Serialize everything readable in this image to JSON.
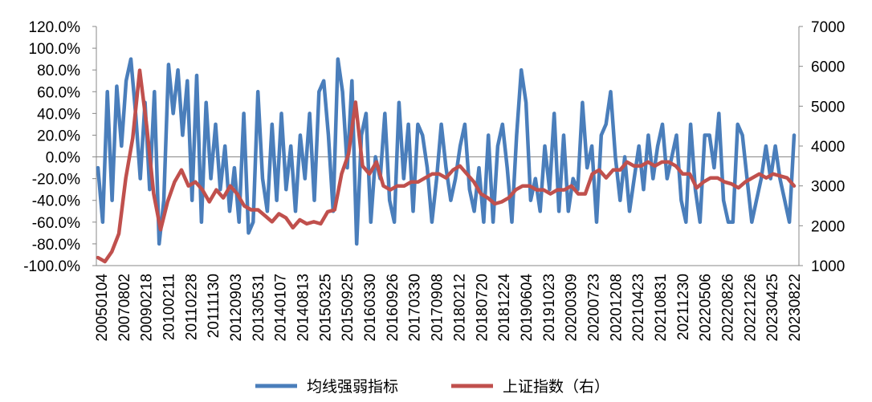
{
  "chart_data": {
    "type": "line",
    "grid": false,
    "legend_position": "bottom",
    "x_tick_labels": [
      "20050104",
      "20070802",
      "20090218",
      "20100211",
      "20110228",
      "20111130",
      "20120903",
      "20130531",
      "20140107",
      "20140813",
      "20150325",
      "20150925",
      "20160330",
      "20160926",
      "20170330",
      "20170908",
      "20180212",
      "20180720",
      "20181224",
      "20190604",
      "20191023",
      "20200309",
      "20200723",
      "20201208",
      "20210423",
      "20210831",
      "20211230",
      "20220506",
      "20220826",
      "20221226",
      "20230425",
      "20230822"
    ],
    "y_left": {
      "ticks": [
        "-100.0%",
        "-80.0%",
        "-60.0%",
        "-40.0%",
        "-20.0%",
        "0.0%",
        "20.0%",
        "40.0%",
        "60.0%",
        "80.0%",
        "100.0%",
        "120.0%"
      ],
      "range": [
        -100,
        120
      ],
      "unit": "%"
    },
    "y_right": {
      "ticks": [
        "1000",
        "2000",
        "3000",
        "4000",
        "5000",
        "6000",
        "7000"
      ],
      "range": [
        1000,
        7000
      ]
    },
    "series": [
      {
        "name": "均线强弱指标",
        "axis": "left",
        "color": "#4a7ebb",
        "values": [
          -10,
          -60,
          60,
          -40,
          65,
          10,
          70,
          90,
          40,
          -20,
          50,
          -30,
          60,
          -80,
          -40,
          85,
          40,
          80,
          20,
          70,
          -40,
          75,
          -60,
          50,
          -20,
          30,
          -30,
          10,
          -50,
          -10,
          -60,
          40,
          -70,
          -60,
          60,
          -20,
          -50,
          30,
          -40,
          40,
          -30,
          10,
          -50,
          20,
          -20,
          40,
          -40,
          60,
          70,
          20,
          -50,
          90,
          60,
          -10,
          70,
          -80,
          20,
          40,
          -60,
          0,
          -20,
          40,
          -40,
          -60,
          50,
          -20,
          30,
          -50,
          30,
          20,
          -10,
          -60,
          -20,
          30,
          -10,
          -40,
          -20,
          10,
          30,
          -30,
          -50,
          -10,
          -60,
          20,
          -60,
          10,
          30,
          -10,
          -60,
          20,
          80,
          50,
          -40,
          -20,
          -50,
          10,
          -30,
          40,
          -50,
          20,
          -50,
          -20,
          -30,
          50,
          -10,
          10,
          -60,
          20,
          30,
          60,
          0,
          -40,
          0,
          -50,
          -20,
          10,
          -30,
          20,
          -20,
          10,
          30,
          -20,
          0,
          20,
          -40,
          -60,
          30,
          -30,
          -60,
          20,
          20,
          -10,
          40,
          -40,
          -60,
          -60,
          30,
          20,
          -20,
          -60,
          -40,
          -20,
          10,
          -20,
          10,
          -20,
          -40,
          -60,
          20
        ]
      },
      {
        "name": "上证指数（右）",
        "axis": "right",
        "color": "#c0504d",
        "values": [
          1200,
          1100,
          1350,
          1800,
          3200,
          4200,
          5900,
          4500,
          2800,
          1900,
          2600,
          3100,
          3400,
          3000,
          3100,
          2900,
          2600,
          2900,
          2700,
          3000,
          2800,
          2500,
          2400,
          2400,
          2250,
          2100,
          2300,
          2200,
          1950,
          2150,
          2050,
          2100,
          2050,
          2350,
          2400,
          3300,
          3800,
          5100,
          3500,
          3300,
          3600,
          3000,
          2900,
          3000,
          3000,
          3100,
          3100,
          3200,
          3300,
          3300,
          3200,
          3400,
          3500,
          3300,
          3100,
          2800,
          2700,
          2550,
          2600,
          2700,
          2900,
          3000,
          3000,
          2900,
          2900,
          2800,
          2900,
          2900,
          3000,
          2800,
          2800,
          3300,
          3400,
          3200,
          3400,
          3400,
          3600,
          3500,
          3500,
          3600,
          3500,
          3600,
          3600,
          3500,
          3300,
          3300,
          2950,
          3100,
          3200,
          3200,
          3100,
          3050,
          2950,
          3100,
          3200,
          3300,
          3200,
          3300,
          3250,
          3200,
          3000
        ]
      }
    ]
  }
}
